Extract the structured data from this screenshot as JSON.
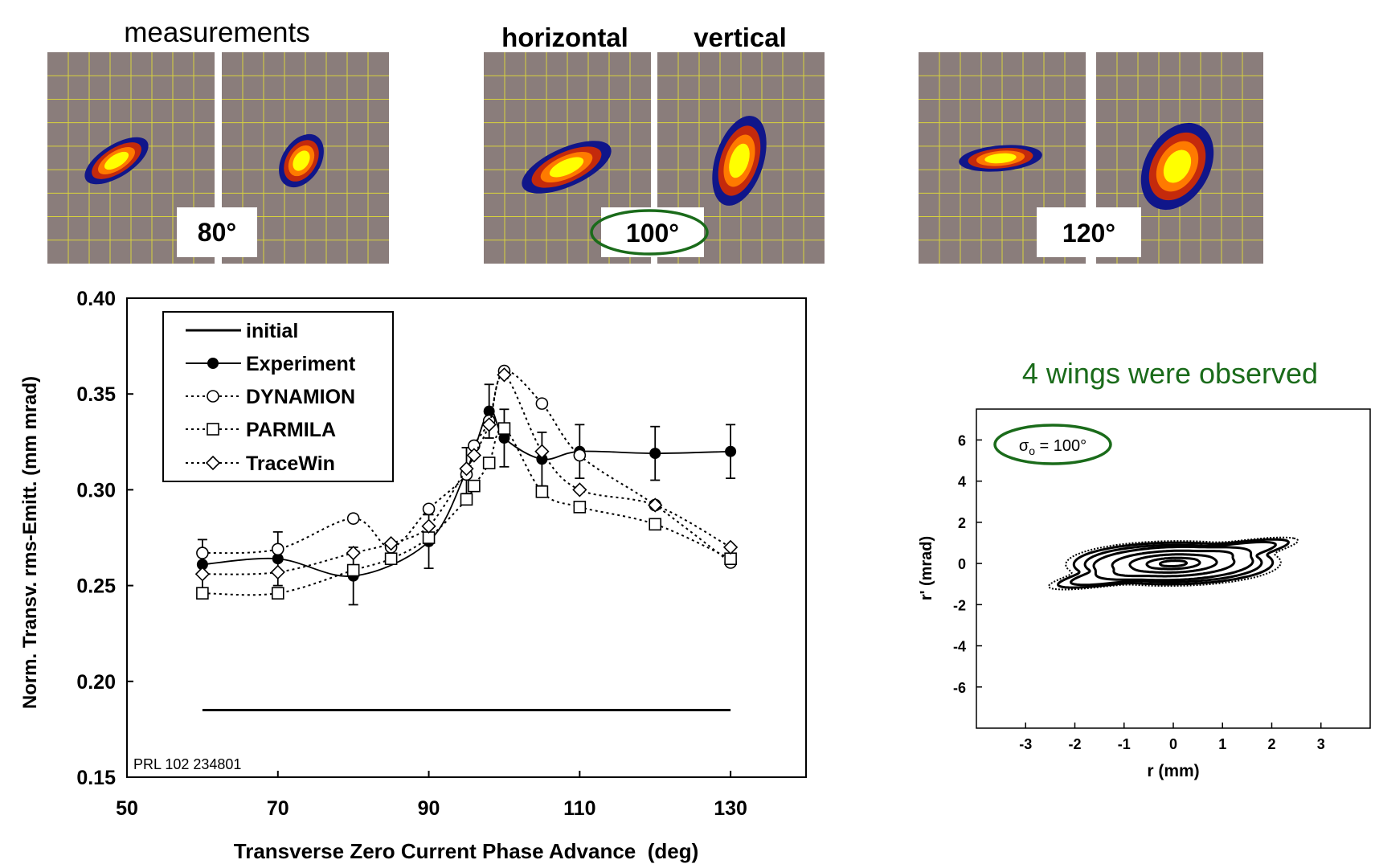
{
  "top_panels": {
    "title_measurements": "measurements",
    "title_horizontal": "horizontal",
    "title_vertical": "vertical",
    "labels": [
      "80°",
      "100°",
      "120°"
    ]
  },
  "colors": {
    "panel_bg": "#8a7d7b",
    "grid": "#d8d23c",
    "beam_outer": "#10168a",
    "beam_mid": "#c42a0c",
    "beam_inner1": "#ff7a00",
    "beam_inner2": "#ffff00",
    "highlight": "#1a6b1a"
  },
  "chart_data": [
    {
      "type": "line",
      "title": "",
      "xlabel": "Transverse Zero Current Phase Advance  (deg)",
      "ylabel": "Norm. Transv. rms-Emitt. (mm mrad)",
      "xlim": [
        50,
        140
      ],
      "ylim": [
        0.15,
        0.4
      ],
      "xticks": [
        50,
        70,
        90,
        110,
        130
      ],
      "yticks": [
        0.15,
        0.2,
        0.25,
        0.3,
        0.35,
        0.4
      ],
      "xtick_labels": [
        "50",
        "70",
        "90",
        "110",
        "130"
      ],
      "ytick_labels": [
        "0.15",
        "0.20",
        "0.25",
        "0.30",
        "0.35",
        "0.40"
      ],
      "annotation": "PRL 102 234801",
      "legend": [
        "initial",
        "Experiment",
        "DYNAMION",
        "PARMILA",
        "TraceWin"
      ],
      "series": [
        {
          "name": "initial",
          "style": "solid",
          "marker": "none",
          "x": [
            60,
            130
          ],
          "y": [
            0.185,
            0.185
          ]
        },
        {
          "name": "Experiment",
          "style": "solid",
          "marker": "filled-circle",
          "x": [
            60,
            70,
            80,
            90,
            95,
            98,
            100,
            105,
            110,
            120,
            130
          ],
          "y": [
            0.261,
            0.264,
            0.255,
            0.273,
            0.31,
            0.341,
            0.327,
            0.316,
            0.32,
            0.319,
            0.32
          ],
          "err": [
            0.013,
            0.014,
            0.015,
            0.014,
            0.012,
            0.014,
            0.015,
            0.014,
            0.014,
            0.014,
            0.014
          ]
        },
        {
          "name": "DYNAMION",
          "style": "dotted",
          "marker": "open-circle",
          "x": [
            60,
            70,
            80,
            85,
            90,
            95,
            96,
            98,
            100,
            105,
            110,
            120,
            130
          ],
          "y": [
            0.267,
            0.269,
            0.285,
            0.27,
            0.29,
            0.308,
            0.323,
            0.336,
            0.362,
            0.345,
            0.318,
            0.292,
            0.262
          ]
        },
        {
          "name": "PARMILA",
          "style": "dotted",
          "marker": "open-square",
          "x": [
            60,
            70,
            80,
            85,
            90,
            95,
            96,
            98,
            100,
            105,
            110,
            120,
            130
          ],
          "y": [
            0.246,
            0.246,
            0.258,
            0.264,
            0.275,
            0.295,
            0.302,
            0.314,
            0.332,
            0.299,
            0.291,
            0.282,
            0.264
          ]
        },
        {
          "name": "TraceWin",
          "style": "dotted",
          "marker": "open-diamond",
          "x": [
            60,
            70,
            80,
            85,
            90,
            95,
            96,
            98,
            100,
            105,
            110,
            120,
            130
          ],
          "y": [
            0.256,
            0.257,
            0.267,
            0.272,
            0.281,
            0.311,
            0.318,
            0.334,
            0.36,
            0.32,
            0.3,
            0.292,
            0.27
          ]
        }
      ]
    },
    {
      "type": "contour",
      "title": "4 wings were observed",
      "annotation": "σo = 100°",
      "annotation_base": "σ",
      "annotation_sub": "o",
      "annotation_rest": " = 100°",
      "xlabel": "r (mm)",
      "ylabel": "r' (mrad)",
      "xlim": [
        -4.0,
        4.0
      ],
      "ylim": [
        -8.0,
        7.5
      ],
      "xticks": [
        -3,
        -2,
        -1,
        0,
        1,
        2,
        3
      ],
      "yticks": [
        -6,
        -4,
        -2,
        0,
        2,
        4,
        6
      ],
      "xtick_labels": [
        "-3",
        "-2",
        "-1",
        "0",
        "1",
        "2",
        "3"
      ],
      "ytick_labels": [
        "-6",
        "-4",
        "-2",
        "0",
        "2",
        "4",
        "6"
      ],
      "core_contour_sizes": [
        0.25,
        0.5,
        0.82,
        1.15,
        1.5
      ],
      "wing_contour_sizes": [
        1.75,
        1.97,
        2.13
      ],
      "wing_count": 4
    }
  ]
}
